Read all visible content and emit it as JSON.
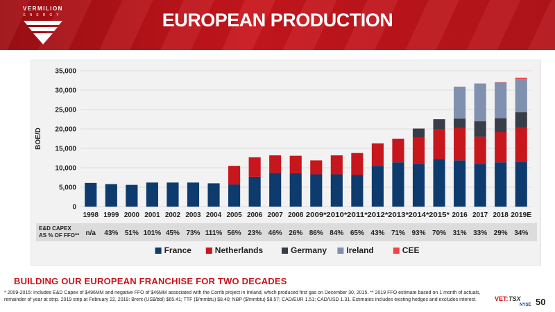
{
  "header": {
    "title": "EUROPEAN PRODUCTION",
    "logo_text": "VERMILION",
    "logo_sub": "ENERGY"
  },
  "chart_data": {
    "type": "bar",
    "stacked": true,
    "ylabel": "BOE/D",
    "ylim": [
      0,
      35000
    ],
    "ytick_labels": [
      "0",
      "5,000",
      "10,000",
      "15,000",
      "20,000",
      "25,000",
      "30,000",
      "35,000"
    ],
    "yticks": [
      0,
      5000,
      10000,
      15000,
      20000,
      25000,
      30000,
      35000
    ],
    "grid": true,
    "legend_position": "bottom",
    "categories": [
      "1998",
      "1999",
      "2000",
      "2001",
      "2002",
      "2003",
      "2004",
      "2005",
      "2006",
      "2007",
      "2008",
      "2009*",
      "2010*",
      "2011*",
      "2012*",
      "2013*",
      "2014*",
      "2015*",
      "2016",
      "2017",
      "2018",
      "2019E"
    ],
    "series": [
      {
        "name": "France",
        "color": "#0d3b6e",
        "values": [
          6100,
          5800,
          5600,
          6200,
          6200,
          6200,
          6000,
          5700,
          7700,
          8700,
          8600,
          8300,
          8300,
          8200,
          10500,
          11400,
          11000,
          12300,
          11900,
          11000,
          11400,
          11500
        ]
      },
      {
        "name": "Netherlands",
        "color": "#c8161d",
        "values": [
          0,
          0,
          0,
          0,
          0,
          0,
          0,
          4800,
          5000,
          4500,
          4500,
          3600,
          4900,
          5600,
          5800,
          6100,
          6700,
          7700,
          8300,
          7000,
          7800,
          8800
        ]
      },
      {
        "name": "Germany",
        "color": "#383d48",
        "values": [
          0,
          0,
          0,
          0,
          0,
          0,
          0,
          0,
          0,
          0,
          0,
          0,
          0,
          0,
          0,
          0,
          2400,
          2500,
          2500,
          4000,
          3600,
          4000
        ]
      },
      {
        "name": "Ireland",
        "color": "#7f91ae",
        "values": [
          0,
          0,
          0,
          0,
          0,
          0,
          0,
          0,
          0,
          0,
          0,
          0,
          0,
          0,
          0,
          0,
          0,
          0,
          8200,
          9700,
          9200,
          8500
        ]
      },
      {
        "name": "CEE",
        "color": "#f04545",
        "values": [
          0,
          0,
          0,
          0,
          0,
          0,
          0,
          0,
          0,
          0,
          0,
          0,
          0,
          0,
          0,
          0,
          0,
          0,
          0,
          0,
          100,
          400
        ]
      }
    ],
    "capex_label": "E&D CAPEX\nAS % OF FFO**",
    "capex_values": [
      "n/a",
      "43%",
      "51%",
      "101%",
      "45%",
      "73%",
      "111%",
      "56%",
      "23%",
      "46%",
      "26%",
      "86%",
      "84%",
      "65%",
      "43%",
      "71%",
      "93%",
      "70%",
      "31%",
      "33%",
      "29%",
      "34%"
    ]
  },
  "footer": {
    "tagline": "BUILDING OUR EUROPEAN FRANCHISE FOR TWO DECADES",
    "footnote": "* 2009-2015: Includes E&D Capex of $496MM and negative FFO of $46MM associated with the Corrib project in Ireland, which produced first gas on December 30, 2015. ** 2019 FFO estimate based on 1 month of actuals, remainder of year at strip. 2019 strip at February 22, 2019: Brent (US$/bbl) $65.41; TTF ($/mmbtu) $8.40; NBP ($/mmbtu) $8.57; CAD/EUR 1.51; CAD/USD 1.31.  Estimates includes existing hedges and excludes interest.",
    "exchange_vet": "VET:",
    "exchange_tsx": "TSX",
    "exchange_nyse": "NYSE",
    "page_number": "50"
  }
}
